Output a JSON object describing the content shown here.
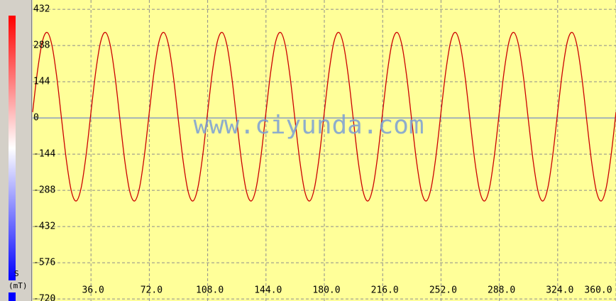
{
  "chart_data": {
    "type": "line",
    "unit_top": "S",
    "unit": "(mT)",
    "watermark": "www.ciyunda.com",
    "x": [
      0,
      3,
      6,
      9,
      12,
      15,
      18,
      21,
      24,
      27,
      30,
      33,
      36,
      39,
      42,
      45,
      48,
      51,
      54,
      57,
      60,
      63,
      66,
      69,
      72,
      75,
      78,
      81,
      84,
      87,
      90,
      93,
      96,
      99,
      102,
      105,
      108,
      111,
      114,
      117,
      120,
      123,
      126,
      129,
      132,
      135,
      138,
      141,
      144,
      147,
      150,
      153,
      156,
      159,
      162,
      165,
      168,
      171,
      174,
      177,
      180,
      183,
      186,
      189,
      192,
      195,
      198,
      201,
      204,
      207,
      210,
      213,
      216,
      219,
      222,
      225,
      228,
      231,
      234,
      237,
      240,
      243,
      246,
      249,
      252,
      255,
      258,
      261,
      264,
      267,
      270,
      273,
      276,
      279,
      282,
      285,
      288,
      291,
      294,
      297,
      300,
      303,
      306,
      309,
      312,
      315,
      318,
      321,
      324,
      327,
      330,
      333,
      336,
      339,
      342,
      345,
      348,
      351,
      354,
      357,
      360
    ],
    "series": [
      {
        "color": "#cc0000",
        "values": [
          23,
          187,
          304,
          340,
          286,
          157,
          -13,
          -177,
          -294,
          -330,
          -276,
          -147,
          23,
          187,
          304,
          340,
          286,
          157,
          -13,
          -177,
          -294,
          -330,
          -276,
          -147,
          23,
          187,
          304,
          340,
          286,
          157,
          -13,
          -177,
          -294,
          -330,
          -276,
          -147,
          23,
          187,
          304,
          340,
          286,
          157,
          -13,
          -177,
          -294,
          -330,
          -276,
          -147,
          23,
          187,
          304,
          340,
          286,
          157,
          -13,
          -177,
          -294,
          -330,
          -276,
          -147,
          23,
          187,
          304,
          340,
          286,
          157,
          -13,
          -177,
          -294,
          -330,
          -276,
          -147,
          23,
          187,
          304,
          340,
          286,
          157,
          -13,
          -177,
          -294,
          -330,
          -276,
          -147,
          23,
          187,
          304,
          340,
          286,
          157,
          -13,
          -177,
          -294,
          -330,
          -276,
          -147,
          23,
          187,
          304,
          340,
          286,
          157,
          -13,
          -177,
          -294,
          -330,
          -276,
          -147,
          23,
          187,
          304,
          340,
          286,
          157,
          -13,
          -177,
          -294,
          -330,
          -276,
          -147,
          23
        ]
      }
    ],
    "xlim": [
      0,
      360
    ],
    "ylim": [
      -728,
      469
    ],
    "xticks": [
      {
        "value": 36,
        "label": "36.0"
      },
      {
        "value": 72,
        "label": "72.0"
      },
      {
        "value": 108,
        "label": "108.0"
      },
      {
        "value": 144,
        "label": "144.0"
      },
      {
        "value": 180,
        "label": "180.0"
      },
      {
        "value": 216,
        "label": "216.0"
      },
      {
        "value": 252,
        "label": "252.0"
      },
      {
        "value": 288,
        "label": "288.0"
      },
      {
        "value": 324,
        "label": "324.0"
      },
      {
        "value": 360,
        "label": "360.0"
      }
    ],
    "yticks": [
      432,
      288,
      144,
      0,
      -144,
      -288,
      -432,
      -576,
      -720
    ],
    "zero_line_color": "#4f6fd0",
    "background": "#ffff99",
    "grid": true
  }
}
